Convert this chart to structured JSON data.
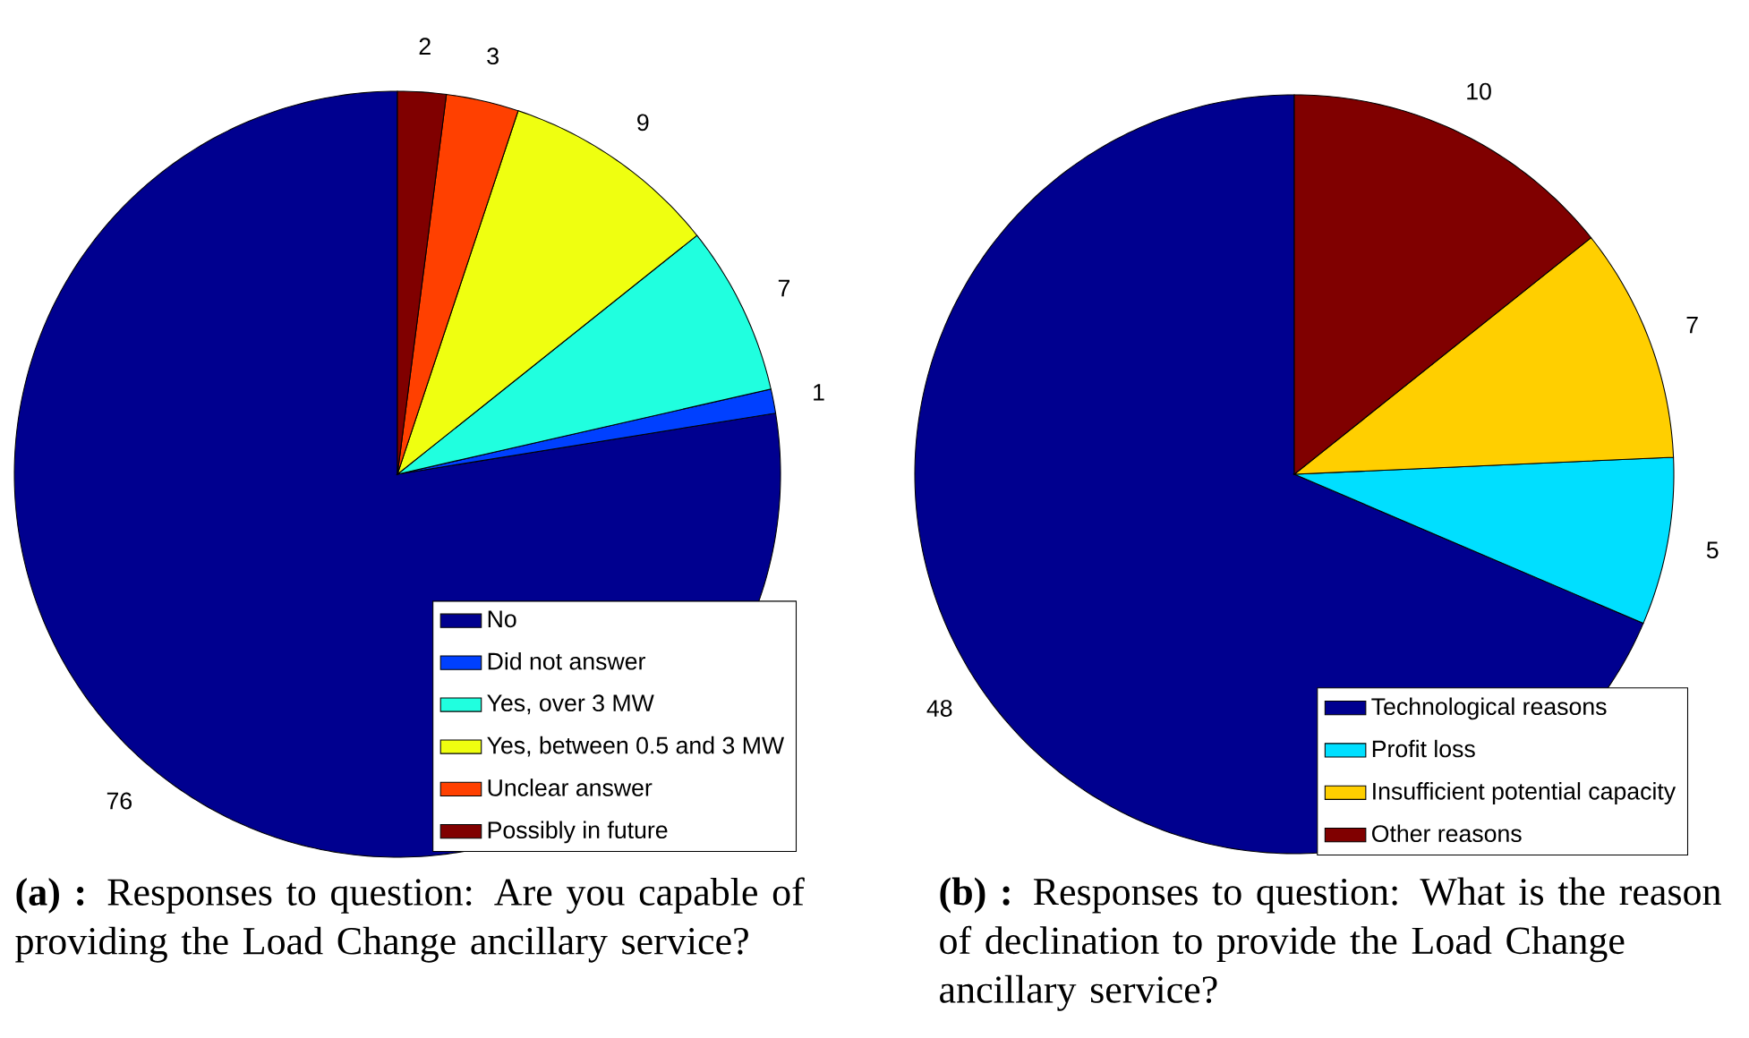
{
  "chart_data": [
    {
      "type": "pie",
      "title": "**(a) :** Responses to question: Are you capable of providing the Load Change ancillary service?",
      "categories": [
        "No",
        "Did not answer",
        "Yes, over 3 MW",
        "Yes, between 0.5 and 3 MW",
        "Unclear answer",
        "Possibly in future"
      ],
      "values": [
        76,
        1,
        7,
        9,
        3,
        2
      ],
      "colors": [
        "#00008f",
        "#0040ff",
        "#20ffdf",
        "#efff10",
        "#ff4000",
        "#800000"
      ],
      "data_labels": true,
      "legend": "bottom right"
    },
    {
      "type": "pie",
      "title": "**(b) :** Responses to question: What is the reason of declination to provide the Load Change ancillary service?",
      "categories": [
        "Technological reasons",
        "Profit loss",
        "Insufficient potential capacity",
        "Other reasons"
      ],
      "values": [
        48,
        5,
        7,
        10
      ],
      "colors": [
        "#00008f",
        "#00dfff",
        "#ffcf00",
        "#800000"
      ],
      "data_labels": true,
      "legend": "bottom right"
    }
  ]
}
